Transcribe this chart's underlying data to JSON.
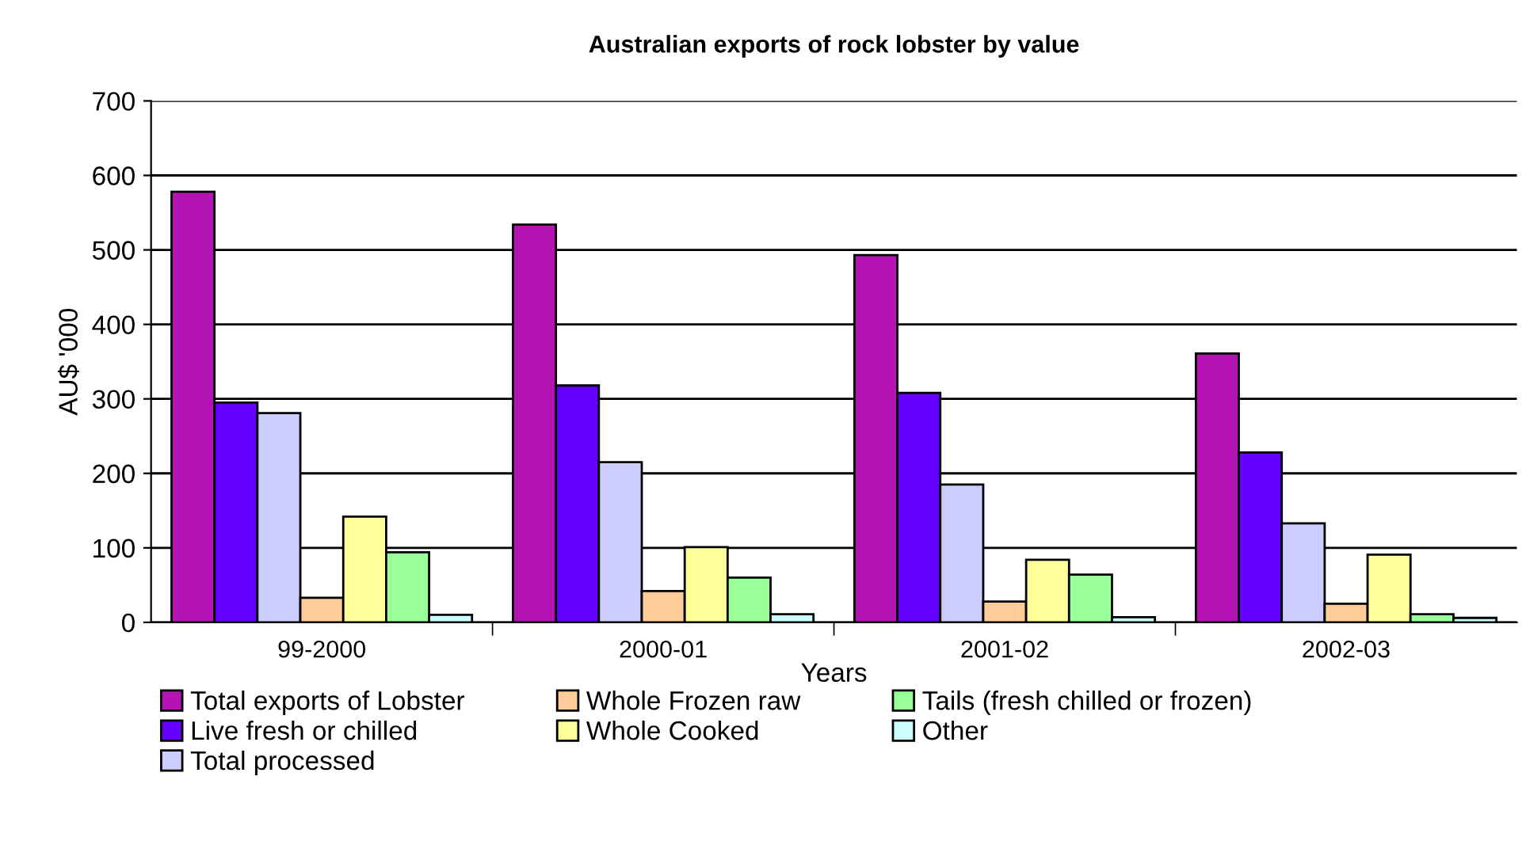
{
  "chart_data": {
    "type": "bar",
    "title": "Australian exports of rock lobster by value",
    "xlabel": "Years",
    "ylabel": "AU$ '000",
    "categories": [
      "99-2000",
      "2000-01",
      "2001-02",
      "2002-03"
    ],
    "series": [
      {
        "name": "Total exports of Lobster",
        "color": "#b414b4",
        "values": [
          578,
          534,
          493,
          361
        ]
      },
      {
        "name": "Live fresh or chilled",
        "color": "#6600ff",
        "values": [
          295,
          318,
          308,
          228
        ]
      },
      {
        "name": "Total processed",
        "color": "#ccccff",
        "values": [
          281,
          215,
          185,
          133
        ]
      },
      {
        "name": "Whole Frozen raw",
        "color": "#ffcc99",
        "values": [
          33,
          42,
          28,
          25
        ]
      },
      {
        "name": "Whole Cooked",
        "color": "#ffff99",
        "values": [
          142,
          101,
          84,
          91
        ]
      },
      {
        "name": "Tails (fresh chilled or frozen)",
        "color": "#99ff99",
        "values": [
          94,
          60,
          64,
          11
        ]
      },
      {
        "name": "Other",
        "color": "#ccffff",
        "values": [
          10,
          11,
          7,
          6
        ]
      }
    ],
    "ylim": [
      0,
      700
    ],
    "yticks": [
      0,
      100,
      200,
      300,
      400,
      500,
      600,
      700
    ],
    "grid": "y",
    "legend": "bottom"
  }
}
